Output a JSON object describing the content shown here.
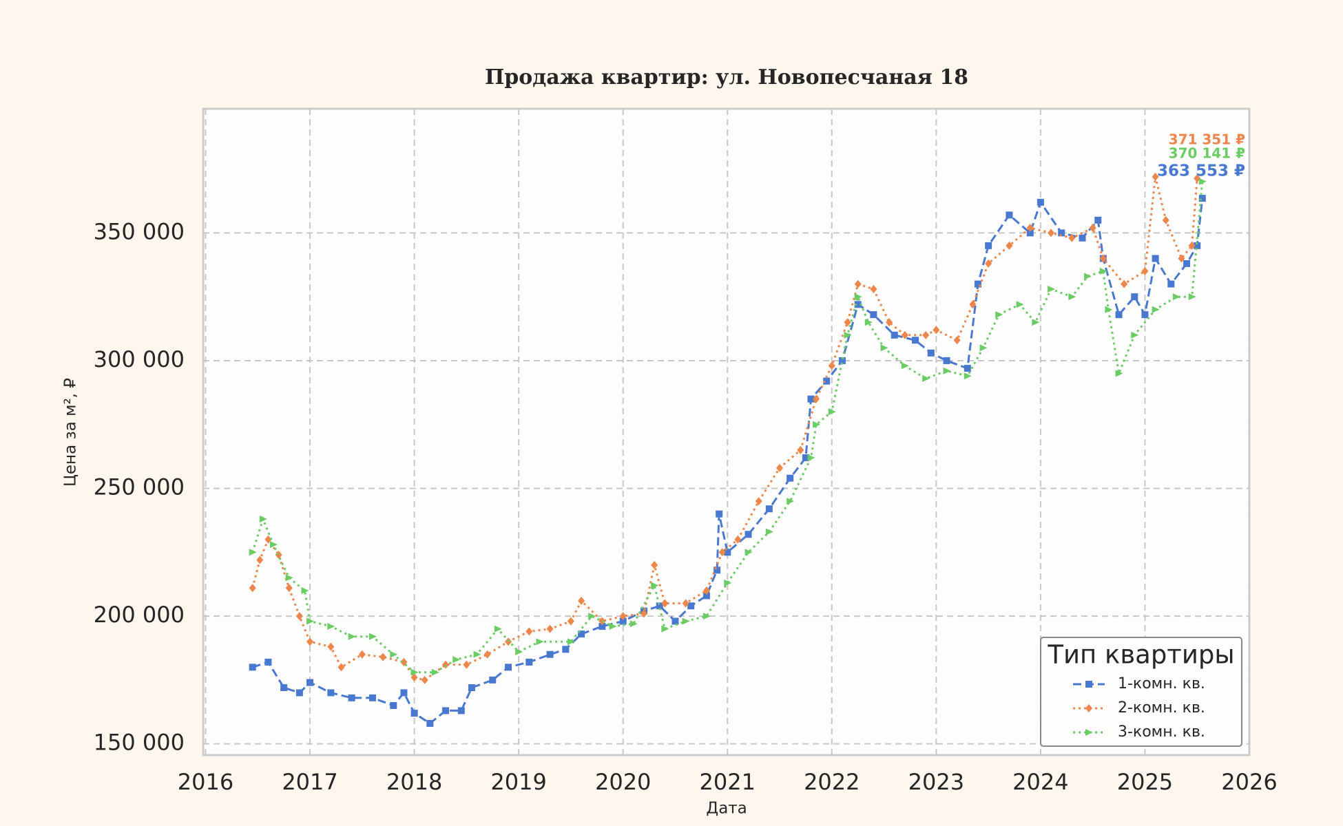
{
  "chart_data": {
    "type": "line",
    "title": "Продажа квартир: ул. Новопесчаная 18",
    "xlabel": "Дата",
    "ylabel": "Цена за м², ₽",
    "xlim": [
      2015.977,
      2026
    ],
    "xticks": [
      2016,
      2017,
      2018,
      2019,
      2020,
      2021,
      2022,
      2023,
      2024,
      2025,
      2026
    ],
    "ylim": [
      145600,
      398600
    ],
    "yticks": [
      {
        "value": 150000,
        "label": "150 000"
      },
      {
        "value": 200000,
        "label": "200 000"
      },
      {
        "value": 250000,
        "label": "250 000"
      },
      {
        "value": 300000,
        "label": "300 000"
      },
      {
        "value": 350000,
        "label": "350 000"
      }
    ],
    "grid": true,
    "legend_title": "Тип квартиры",
    "legend_position": "lower right",
    "series": [
      {
        "name": "1-комн. кв.",
        "color": "#4878d0",
        "marker": "square",
        "dash": "dashed",
        "end_label": "363 553 ₽",
        "x": [
          2016.45,
          2016.6,
          2016.75,
          2016.9,
          2017.0,
          2017.2,
          2017.4,
          2017.6,
          2017.8,
          2017.9,
          2018.0,
          2018.15,
          2018.3,
          2018.45,
          2018.55,
          2018.75,
          2018.9,
          2019.1,
          2019.3,
          2019.45,
          2019.6,
          2019.8,
          2020.0,
          2020.2,
          2020.35,
          2020.5,
          2020.65,
          2020.8,
          2020.9,
          2020.92,
          2021.0,
          2021.2,
          2021.4,
          2021.6,
          2021.75,
          2021.8,
          2021.95,
          2022.1,
          2022.25,
          2022.4,
          2022.6,
          2022.8,
          2022.95,
          2023.1,
          2023.3,
          2023.4,
          2023.5,
          2023.7,
          2023.9,
          2024.0,
          2024.2,
          2024.4,
          2024.55,
          2024.6,
          2024.75,
          2024.9,
          2025.0,
          2025.1,
          2025.25,
          2025.4,
          2025.5,
          2025.55
        ],
        "values": [
          180000,
          182000,
          172000,
          170000,
          174000,
          170000,
          168000,
          168000,
          165000,
          170000,
          162000,
          158000,
          163000,
          163000,
          172000,
          175000,
          180000,
          182000,
          185000,
          187000,
          193000,
          196000,
          198000,
          202000,
          204000,
          198000,
          204000,
          208000,
          218000,
          240000,
          225000,
          232000,
          242000,
          254000,
          262000,
          285000,
          292000,
          300000,
          322000,
          318000,
          310000,
          308000,
          303000,
          300000,
          297000,
          330000,
          345000,
          357000,
          350000,
          362000,
          350000,
          348000,
          355000,
          340000,
          318000,
          325000,
          318000,
          340000,
          330000,
          338000,
          345000,
          363553
        ]
      },
      {
        "name": "2-комн. кв.",
        "color": "#ee854a",
        "marker": "diamond",
        "dash": "dotted",
        "end_label": "371 351 ₽",
        "x": [
          2016.45,
          2016.52,
          2016.6,
          2016.7,
          2016.8,
          2016.9,
          2017.0,
          2017.2,
          2017.3,
          2017.5,
          2017.7,
          2017.9,
          2018.0,
          2018.1,
          2018.3,
          2018.5,
          2018.7,
          2018.9,
          2019.1,
          2019.3,
          2019.5,
          2019.6,
          2019.8,
          2020.0,
          2020.2,
          2020.3,
          2020.4,
          2020.6,
          2020.8,
          2020.95,
          2021.1,
          2021.3,
          2021.5,
          2021.7,
          2021.85,
          2022.0,
          2022.15,
          2022.25,
          2022.4,
          2022.55,
          2022.7,
          2022.9,
          2023.0,
          2023.2,
          2023.35,
          2023.5,
          2023.7,
          2023.9,
          2024.1,
          2024.3,
          2024.5,
          2024.6,
          2024.8,
          2025.0,
          2025.1,
          2025.2,
          2025.35,
          2025.45,
          2025.5
        ],
        "values": [
          211000,
          222000,
          230000,
          224000,
          211000,
          200000,
          190000,
          188000,
          180000,
          185000,
          184000,
          182000,
          176000,
          175000,
          181000,
          181000,
          185000,
          190000,
          194000,
          195000,
          198000,
          206000,
          198000,
          200000,
          201000,
          220000,
          205000,
          205000,
          210000,
          225000,
          230000,
          245000,
          258000,
          265000,
          285000,
          298000,
          315000,
          330000,
          328000,
          315000,
          310000,
          310000,
          312000,
          308000,
          322000,
          338000,
          345000,
          352000,
          350000,
          348000,
          352000,
          340000,
          330000,
          335000,
          372000,
          355000,
          340000,
          345000,
          371351
        ]
      },
      {
        "name": "3-комн. кв.",
        "color": "#6acc64",
        "marker": "triangle",
        "dash": "dotted",
        "end_label": "370 141 ₽",
        "x": [
          2016.45,
          2016.55,
          2016.65,
          2016.8,
          2016.95,
          2017.0,
          2017.2,
          2017.4,
          2017.6,
          2017.8,
          2018.0,
          2018.2,
          2018.4,
          2018.6,
          2018.8,
          2019.0,
          2019.2,
          2019.5,
          2019.7,
          2019.9,
          2020.1,
          2020.3,
          2020.4,
          2020.6,
          2020.8,
          2021.0,
          2021.2,
          2021.4,
          2021.6,
          2021.8,
          2021.85,
          2022.0,
          2022.15,
          2022.25,
          2022.35,
          2022.5,
          2022.7,
          2022.9,
          2023.1,
          2023.3,
          2023.45,
          2023.6,
          2023.8,
          2023.95,
          2024.1,
          2024.3,
          2024.45,
          2024.6,
          2024.65,
          2024.75,
          2024.9,
          2025.1,
          2025.3,
          2025.45,
          2025.55
        ],
        "values": [
          225000,
          238000,
          228000,
          215000,
          210000,
          198000,
          196000,
          192000,
          192000,
          185000,
          178000,
          178000,
          183000,
          185000,
          195000,
          186000,
          190000,
          190000,
          200000,
          196000,
          197000,
          212000,
          195000,
          198000,
          200000,
          213000,
          225000,
          233000,
          245000,
          262000,
          275000,
          280000,
          310000,
          325000,
          315000,
          305000,
          298000,
          293000,
          296000,
          294000,
          305000,
          318000,
          322000,
          315000,
          328000,
          325000,
          333000,
          335000,
          320000,
          295000,
          310000,
          320000,
          325000,
          325000,
          370141
        ]
      }
    ]
  }
}
